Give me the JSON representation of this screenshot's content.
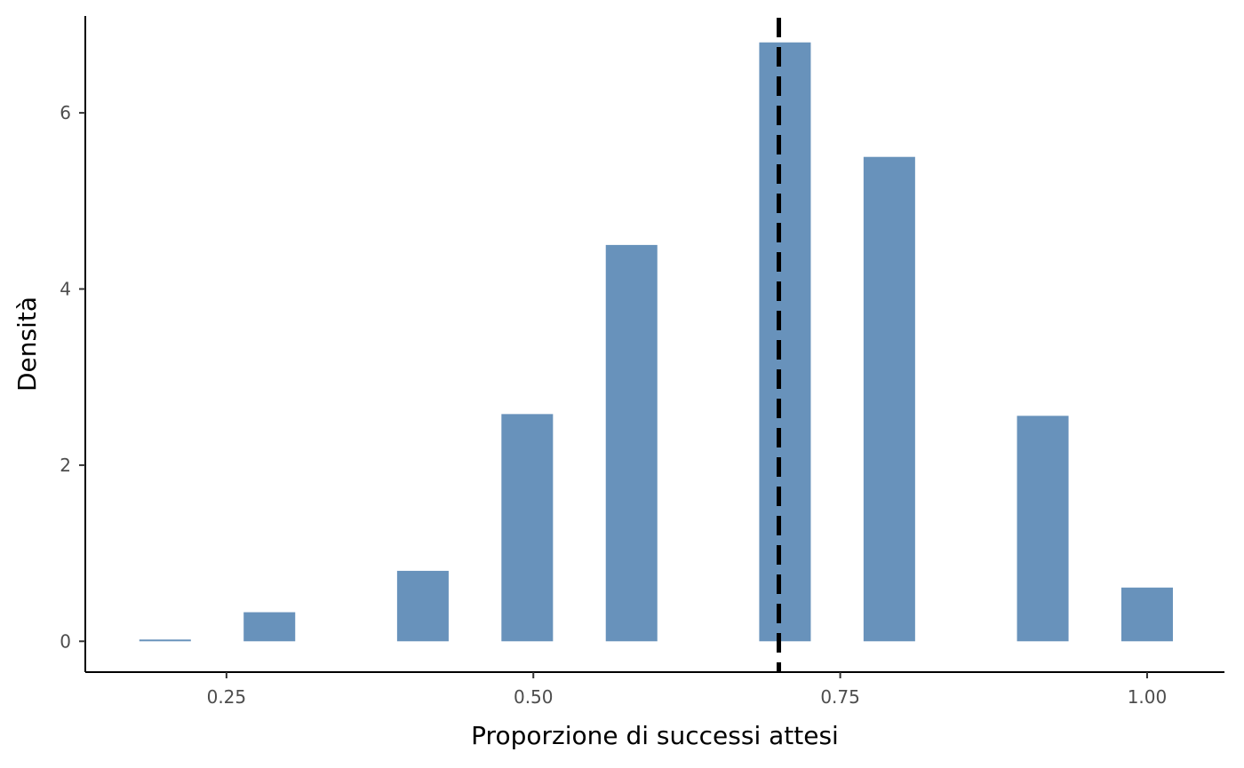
{
  "chart_data": {
    "type": "bar",
    "xlabel": "Proporzione di successi attesi",
    "ylabel": "Densità",
    "xlim": [
      0.135,
      1.063
    ],
    "ylim": [
      -0.35,
      7.1
    ],
    "x_ticks": [
      0.25,
      0.5,
      0.75,
      1.0
    ],
    "x_tick_labels": [
      "0.25",
      "0.50",
      "0.75",
      "1.00"
    ],
    "y_ticks": [
      0,
      2,
      4,
      6
    ],
    "y_tick_labels": [
      "0",
      "2",
      "4",
      "6"
    ],
    "bin_width": 0.042,
    "bars": [
      {
        "x": 0.2,
        "value": 0.02
      },
      {
        "x": 0.285,
        "value": 0.33
      },
      {
        "x": 0.41,
        "value": 0.8
      },
      {
        "x": 0.495,
        "value": 2.58
      },
      {
        "x": 0.58,
        "value": 4.5
      },
      {
        "x": 0.705,
        "value": 6.8
      },
      {
        "x": 0.79,
        "value": 5.5
      },
      {
        "x": 0.915,
        "value": 2.56
      },
      {
        "x": 1.0,
        "value": 0.61
      }
    ],
    "reference_line": {
      "x": 0.7,
      "style": "dashed",
      "color": "#000000"
    },
    "bar_color": "#6892bb",
    "grid": false,
    "legend": "none"
  }
}
